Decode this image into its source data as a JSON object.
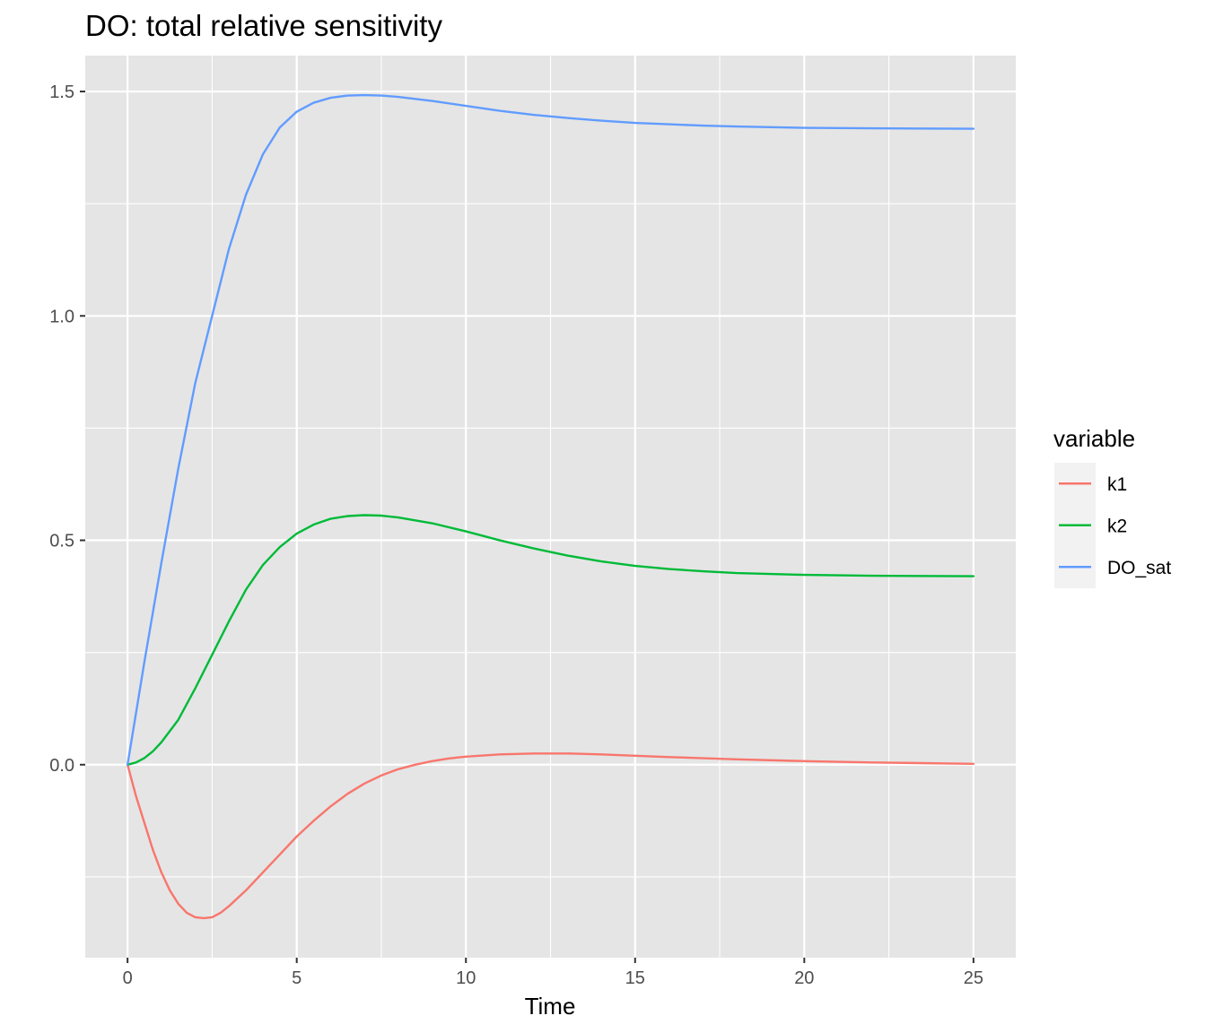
{
  "chart_data": {
    "type": "line",
    "title": "DO: total relative sensitivity",
    "xlabel": "Time",
    "ylabel": "",
    "xlim": [
      -1.25,
      26.25
    ],
    "ylim": [
      -0.43,
      1.58
    ],
    "x_ticks": [
      0,
      5,
      10,
      15,
      20,
      25
    ],
    "x_tick_labels": [
      "0",
      "5",
      "10",
      "15",
      "20",
      "25"
    ],
    "y_ticks": [
      0.0,
      0.5,
      1.0,
      1.5
    ],
    "y_tick_labels": [
      "0.0",
      "0.5",
      "1.0",
      "1.5"
    ],
    "grid": true,
    "legend_title": "variable",
    "legend_position": "right",
    "series": [
      {
        "name": "k1",
        "color": "#F8766D",
        "x": [
          0,
          0.25,
          0.5,
          0.75,
          1,
          1.25,
          1.5,
          1.75,
          2,
          2.25,
          2.5,
          2.75,
          3,
          3.5,
          4,
          4.5,
          5,
          5.5,
          6,
          6.5,
          7,
          7.5,
          8,
          8.5,
          9,
          9.5,
          10,
          11,
          12,
          13,
          14,
          15,
          16,
          18,
          20,
          22,
          25
        ],
        "y": [
          0,
          -0.07,
          -0.13,
          -0.19,
          -0.24,
          -0.28,
          -0.31,
          -0.33,
          -0.34,
          -0.342,
          -0.34,
          -0.33,
          -0.315,
          -0.28,
          -0.24,
          -0.2,
          -0.16,
          -0.125,
          -0.093,
          -0.065,
          -0.042,
          -0.024,
          -0.01,
          0.0,
          0.008,
          0.014,
          0.018,
          0.023,
          0.025,
          0.025,
          0.023,
          0.02,
          0.017,
          0.012,
          0.008,
          0.005,
          0.002
        ]
      },
      {
        "name": "k2",
        "color": "#00BA38",
        "x": [
          0,
          0.25,
          0.5,
          0.75,
          1,
          1.5,
          2,
          2.5,
          3,
          3.5,
          4,
          4.5,
          5,
          5.5,
          6,
          6.5,
          7,
          7.5,
          8,
          9,
          10,
          11,
          12,
          13,
          14,
          15,
          16,
          17,
          18,
          20,
          22,
          25
        ],
        "y": [
          0,
          0.005,
          0.015,
          0.03,
          0.05,
          0.1,
          0.17,
          0.245,
          0.32,
          0.39,
          0.445,
          0.485,
          0.515,
          0.535,
          0.548,
          0.554,
          0.556,
          0.555,
          0.551,
          0.538,
          0.52,
          0.5,
          0.482,
          0.466,
          0.453,
          0.443,
          0.436,
          0.431,
          0.427,
          0.423,
          0.421,
          0.42
        ]
      },
      {
        "name": "DO_sat",
        "color": "#619CFF",
        "x": [
          0,
          0.5,
          1,
          1.5,
          2,
          2.5,
          3,
          3.5,
          4,
          4.5,
          5,
          5.5,
          6,
          6.5,
          7,
          7.5,
          8,
          9,
          10,
          11,
          12,
          13,
          14,
          15,
          16,
          17,
          18,
          20,
          22,
          25
        ],
        "y": [
          0,
          0.23,
          0.45,
          0.66,
          0.85,
          1.0,
          1.15,
          1.27,
          1.36,
          1.42,
          1.455,
          1.475,
          1.486,
          1.491,
          1.492,
          1.491,
          1.488,
          1.479,
          1.468,
          1.457,
          1.448,
          1.441,
          1.435,
          1.43,
          1.427,
          1.424,
          1.422,
          1.419,
          1.418,
          1.417
        ]
      }
    ]
  }
}
